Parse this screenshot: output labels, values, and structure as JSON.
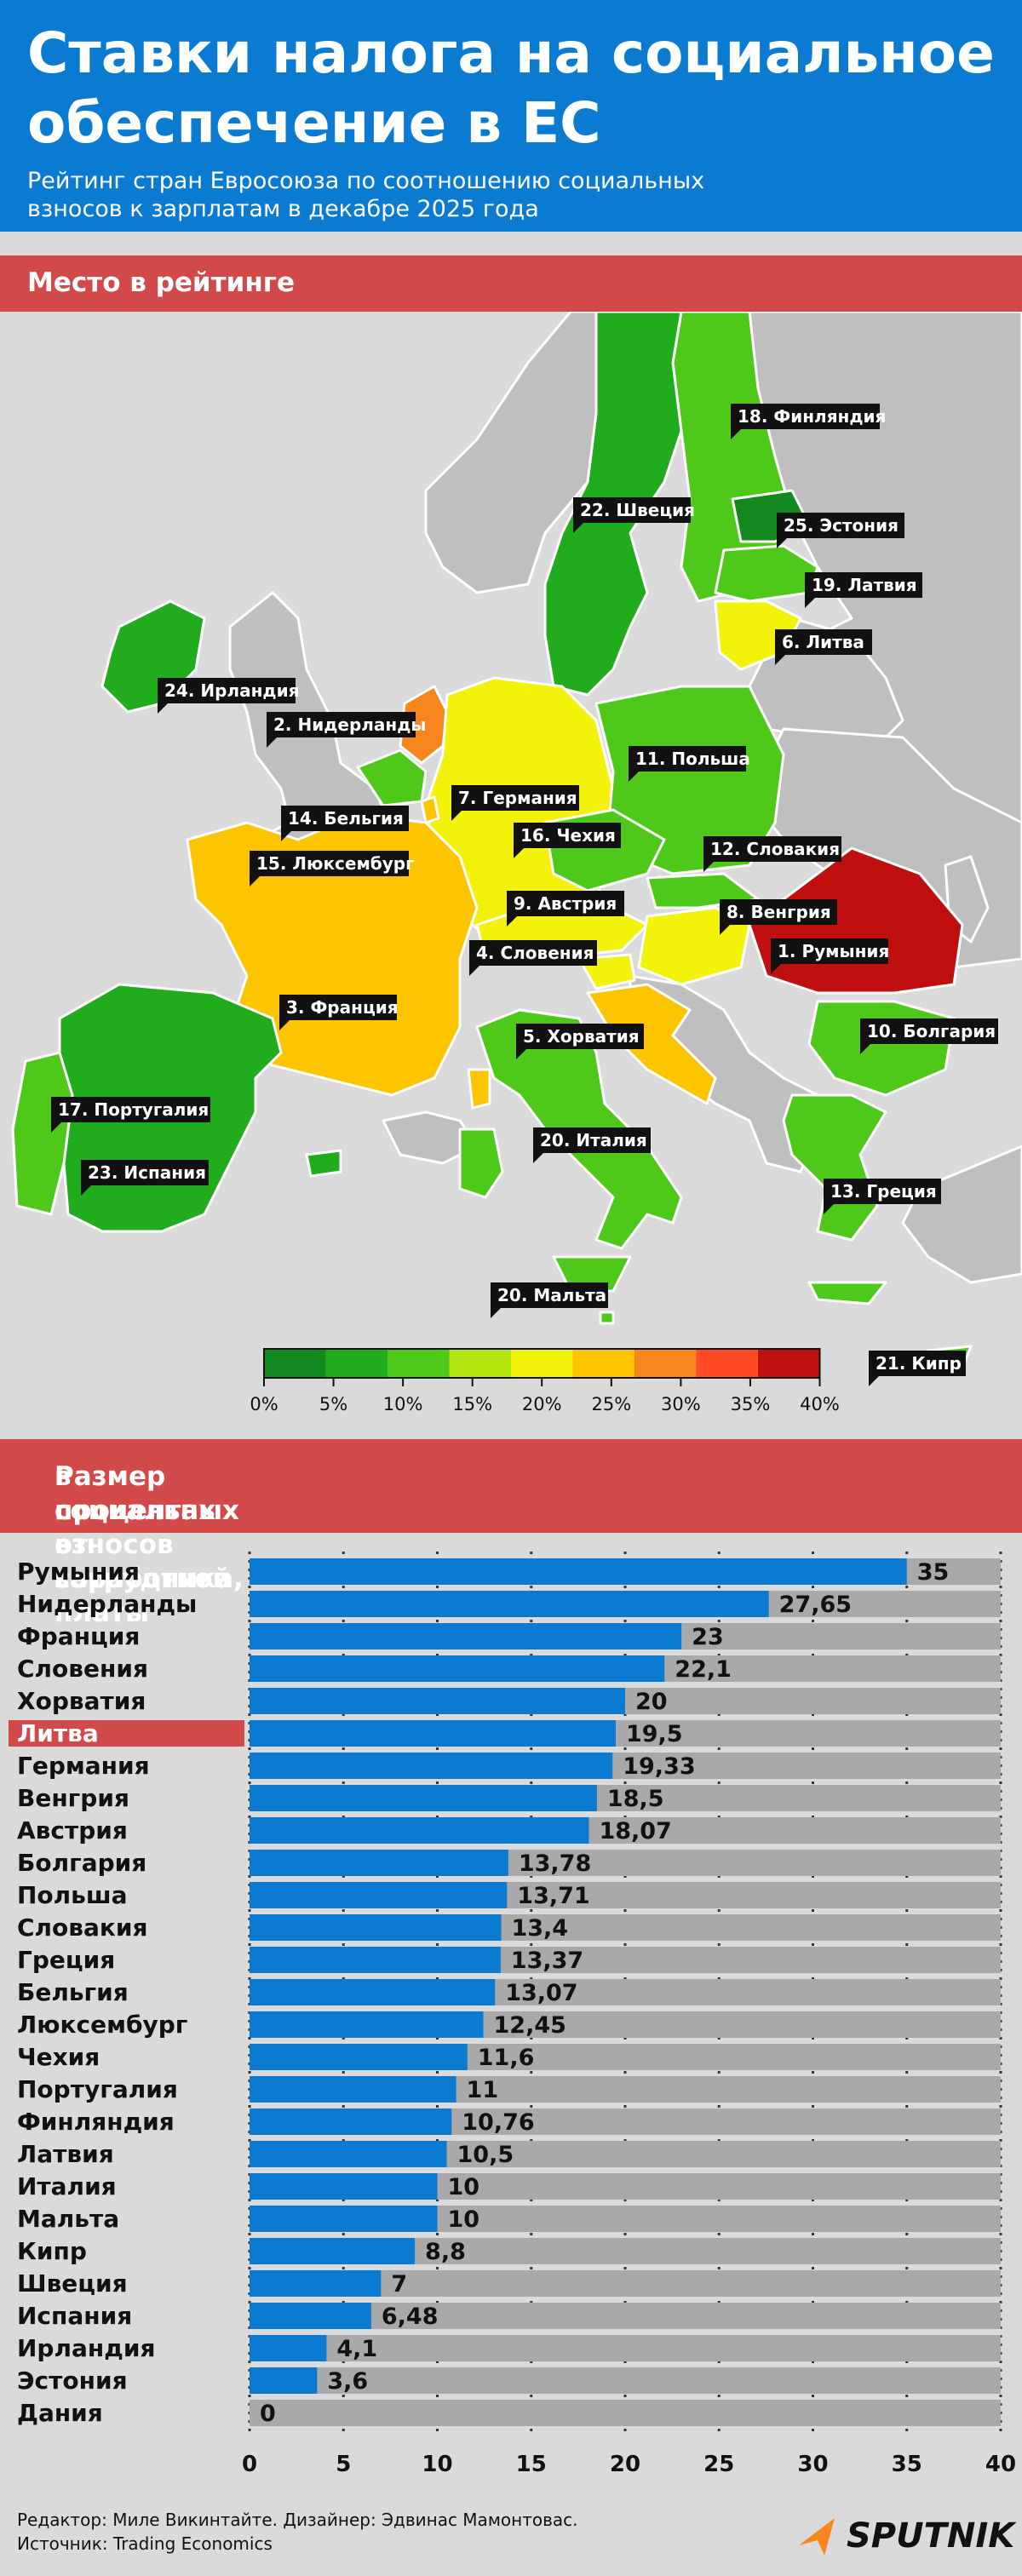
{
  "header": {
    "title": "Ставки налога на социальное обеспечение в ЕС",
    "subtitle": "Рейтинг стран Евросоюза по соотношению социальных взносов к зарплатам в декабре 2025 года"
  },
  "map_section": {
    "heading": "Место в рейтинге",
    "labels": [
      "18. Финляндия",
      "22. Швеция",
      "25. Эстония",
      "19. Латвия",
      "6. Литва",
      "24. Ирландия",
      "2. Нидерланды",
      "11. Польша",
      "7. Германия",
      "14. Бельгия",
      "16. Чехия",
      "15. Люксембург",
      "12. Словакия",
      "9. Австрия",
      "8. Венгрия",
      "1. Румыния",
      "4. Словения",
      "3. Франция",
      "5. Хорватия",
      "10. Болгария",
      "17. Португалия",
      "20. Италия",
      "23. Испания",
      "13. Греция",
      "20. Мальта",
      "21. Кипр"
    ],
    "legend": {
      "ticks": [
        "0%",
        "5%",
        "10%",
        "15%",
        "20%",
        "25%",
        "30%",
        "35%",
        "40%"
      ],
      "colors": [
        "#138a1f",
        "#21ac1e",
        "#4ec919",
        "#b2e40e",
        "#f2f20a",
        "#fcc500",
        "#f7861f",
        "#ff4a25",
        "#c00f0f"
      ]
    },
    "colors": {
      "non_eu": "#bfbfbf",
      "border": "#ffffff"
    }
  },
  "chart_section": {
    "heading_line1": "Размер социальных взносов сотрудника,",
    "heading_line2": "в процентах от заработной платы"
  },
  "chart_data": {
    "type": "bar",
    "orientation": "horizontal",
    "categories": [
      "Румыния",
      "Нидерланды",
      "Франция",
      "Словения",
      "Хорватия",
      "Литва",
      "Германия",
      "Венгрия",
      "Австрия",
      "Болгария",
      "Польша",
      "Словакия",
      "Греция",
      "Бельгия",
      "Люксембург",
      "Чехия",
      "Португалия",
      "Финляндия",
      "Латвия",
      "Италия",
      "Мальта",
      "Кипр",
      "Швеция",
      "Испания",
      "Ирландия",
      "Эстония",
      "Дания"
    ],
    "values": [
      35,
      27.65,
      23,
      22.1,
      20,
      19.5,
      19.33,
      18.5,
      18.07,
      13.78,
      13.71,
      13.4,
      13.37,
      13.07,
      12.45,
      11.6,
      11,
      10.76,
      10.5,
      10,
      10,
      8.8,
      7,
      6.48,
      4.1,
      3.6,
      0
    ],
    "value_labels": [
      "35",
      "27,65",
      "23",
      "22,1",
      "20",
      "19,5",
      "19,33",
      "18,5",
      "18,07",
      "13,78",
      "13,71",
      "13,4",
      "13,37",
      "13,07",
      "12,45",
      "11,6",
      "11",
      "10,76",
      "10,5",
      "10",
      "10",
      "8,8",
      "7",
      "6,48",
      "4,1",
      "3,6",
      "0"
    ],
    "highlight": "Литва",
    "xlim": [
      0,
      40
    ],
    "x_ticks": [
      "0",
      "5",
      "10",
      "15",
      "20",
      "25",
      "30",
      "35",
      "40"
    ],
    "grid": true,
    "bar_color": "#0a7bd1",
    "track_color": "#a9a9a9",
    "highlight_color": "#d2494a"
  },
  "footer": {
    "editor": "Редактор: Миле Викинтайте.  Дизайнер: Эдвинас Мамонтовас.",
    "source": "Источник: Trading Economics",
    "logo": "SPUTNIK",
    "logo_icon": "sputnik-arrow-icon"
  }
}
